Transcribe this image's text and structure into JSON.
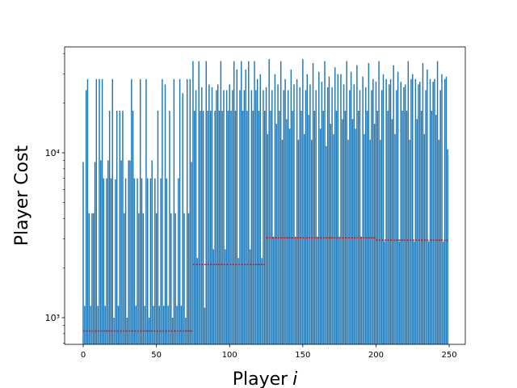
{
  "chart_data": {
    "type": "bar",
    "xlabel": [
      "Player",
      "i"
    ],
    "ylabel": "Player Cost",
    "color": "#1f77b4",
    "bar_width": 0.8,
    "log_y": true,
    "xlim": [
      -12.7,
      261
    ],
    "ylim": [
      689,
      43900
    ],
    "xticks": [
      0,
      50,
      100,
      150,
      200,
      250
    ],
    "yticks": [
      {
        "value": 1000,
        "label": "10³"
      },
      {
        "value": 10000,
        "label": "10⁴"
      }
    ],
    "yminorticks": [
      700,
      800,
      900,
      2000,
      3000,
      4000,
      5000,
      6000,
      7000,
      8000,
      9000,
      20000,
      30000,
      40000
    ],
    "reference_lines": {
      "color": "#ff0000",
      "segments": [
        {
          "x": [
            0,
            75
          ],
          "y": 830
        },
        {
          "x": [
            75,
            125
          ],
          "y": 2100
        },
        {
          "x": [
            125,
            200
          ],
          "y": 3050
        },
        {
          "x": [
            200,
            250
          ],
          "y": 2950
        }
      ]
    },
    "values": [
      8800,
      1180,
      24000,
      28000,
      4300,
      1180,
      4300,
      4300,
      8800,
      28000,
      1180,
      28000,
      9000,
      28000,
      7000,
      1180,
      7000,
      9000,
      18000,
      7000,
      28000,
      1000,
      6900,
      18000,
      1180,
      18000,
      9000,
      18000,
      4300,
      7000,
      1000,
      9000,
      9000,
      28000,
      18000,
      7000,
      1180,
      7000,
      4300,
      28000,
      7000,
      4300,
      1180,
      28000,
      7000,
      1000,
      7000,
      9000,
      1180,
      7000,
      4300,
      18000,
      1180,
      7000,
      28000,
      1180,
      26000,
      7000,
      1180,
      18000,
      4300,
      1000,
      28000,
      4300,
      1180,
      7000,
      28000,
      1180,
      23000,
      4300,
      1000,
      28000,
      4300,
      28000,
      8800,
      36000,
      18000,
      24000,
      2300,
      36000,
      18000,
      25000,
      18000,
      1150,
      36000,
      18000,
      26000,
      18000,
      25000,
      2600,
      18000,
      24000,
      26000,
      18000,
      36000,
      18000,
      24000,
      2600,
      24000,
      18000,
      26000,
      18000,
      24000,
      36000,
      18000,
      32000,
      2300,
      24000,
      36000,
      18000,
      24000,
      32000,
      18000,
      36000,
      2600,
      24000,
      18000,
      36000,
      24000,
      28000,
      18000,
      30000,
      2300,
      24000,
      18000,
      25000,
      13000,
      37000,
      18000,
      24000,
      3100,
      30000,
      15000,
      26000,
      18000,
      36000,
      12000,
      24000,
      28000,
      16000,
      24000,
      14000,
      32000,
      18000,
      26000,
      3100,
      28000,
      12000,
      25000,
      18000,
      37000,
      13000,
      24000,
      30000,
      17000,
      26000,
      12000,
      35000,
      18000,
      24000,
      3100,
      31000,
      14000,
      27000,
      18000,
      36000,
      11000,
      25000,
      29000,
      15000,
      25000,
      13000,
      33000,
      18000,
      30000,
      3100,
      30000,
      16000,
      26000,
      18000,
      36000,
      12000,
      24000,
      31000,
      16000,
      26000,
      14000,
      34000,
      18000,
      24000,
      3100,
      29000,
      13000,
      25000,
      18000,
      35000,
      12000,
      24000,
      28000,
      15000,
      27000,
      18000,
      36000,
      12000,
      24000,
      30000,
      2900,
      28000,
      18000,
      26000,
      28000,
      16000,
      34000,
      13000,
      24000,
      31000,
      2900,
      27000,
      18000,
      25000,
      26000,
      18000,
      36000,
      12000,
      28000,
      30000,
      2900,
      28000,
      16000,
      26000,
      27000,
      18000,
      35000,
      13000,
      24000,
      32000,
      2900,
      28000,
      18000,
      27000,
      28000,
      17000,
      36000,
      12000,
      24000,
      30000,
      2900,
      28000,
      29000,
      10500
    ]
  }
}
